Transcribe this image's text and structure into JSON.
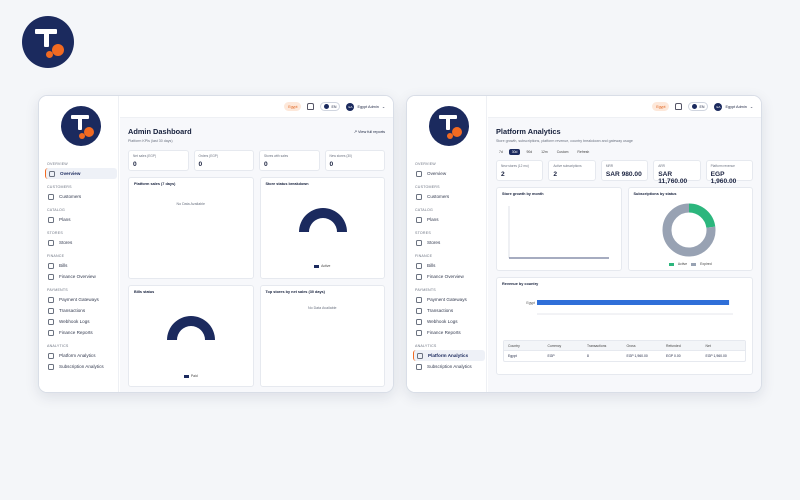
{
  "colors": {
    "brand": "#1b2a5e",
    "accent": "#f26a21"
  },
  "topbar": {
    "region": "Egypt",
    "lang": "EN",
    "user": "Egypt Admin",
    "initials": "EA"
  },
  "sidebar": {
    "sections": [
      {
        "title": "Overview",
        "items": [
          {
            "label": "Overview",
            "icon": "clock-icon"
          }
        ]
      },
      {
        "title": "Customers",
        "items": [
          {
            "label": "Customers",
            "icon": "users-icon"
          }
        ]
      },
      {
        "title": "Catalog",
        "items": [
          {
            "label": "Plans",
            "icon": "box-icon"
          }
        ]
      },
      {
        "title": "Stores",
        "items": [
          {
            "label": "Stores",
            "icon": "store-icon"
          }
        ]
      },
      {
        "title": "Finance",
        "items": [
          {
            "label": "Bills",
            "icon": "bill-icon"
          },
          {
            "label": "Finance Overview",
            "icon": "chart-icon"
          }
        ]
      },
      {
        "title": "Payments",
        "items": [
          {
            "label": "Payment Gateways",
            "icon": "card-icon"
          },
          {
            "label": "Transactions",
            "icon": "swap-icon"
          },
          {
            "label": "Webhook Logs",
            "icon": "hook-icon"
          },
          {
            "label": "Finance Reports",
            "icon": "report-icon"
          }
        ]
      },
      {
        "title": "Analytics",
        "items": [
          {
            "label": "Platform Analytics",
            "icon": "trend-icon"
          },
          {
            "label": "Subscription Analytics",
            "icon": "pie-icon"
          }
        ]
      }
    ]
  },
  "dashboard": {
    "title": "Admin Dashboard",
    "view_all": "View full reports",
    "kpi_title": "Platform KPIs (last 30 days)",
    "kpis": [
      {
        "label": "Net sales (EGP)",
        "value": "0"
      },
      {
        "label": "Orders (EGP)",
        "value": "0"
      },
      {
        "label": "Stores with sales",
        "value": "0"
      },
      {
        "label": "New stores (30)",
        "value": "0"
      }
    ],
    "cards": {
      "sales": {
        "title": "Platform sales (7 days)",
        "empty": "No Data Available"
      },
      "breakdown": {
        "title": "Store status breakdown",
        "legend": "Active"
      },
      "bills": {
        "title": "Bills status",
        "legend": "Paid"
      },
      "top": {
        "title": "Top stores by net sales (30 days)",
        "empty": "No Data Available"
      }
    }
  },
  "analytics": {
    "title": "Platform Analytics",
    "subtitle": "Store growth, subscriptions, platform revenue, country breakdown and gateway usage",
    "tabs": [
      "7d",
      "30d",
      "90d",
      "12m",
      "Custom",
      "Refresh"
    ],
    "kpis": [
      {
        "label": "New stores (12 mo)",
        "value": "2",
        "sub": ""
      },
      {
        "label": "Active subscriptions",
        "value": "2",
        "sub": ""
      },
      {
        "label": "MRR",
        "value": "SAR 980.00",
        "sub": ""
      },
      {
        "label": "ARR",
        "value": "SAR 11,760.00",
        "sub": ""
      },
      {
        "label": "Platform revenue",
        "value": "EGP 1,960.00",
        "sub": "Net (paid)"
      }
    ],
    "growth_title": "Store growth by month",
    "subs_title": "Subscriptions by status",
    "subs_legend": [
      "Active",
      "Expired"
    ],
    "revenue_title": "Revenue by country",
    "table": {
      "headers": [
        "Country",
        "Currency",
        "Transactions",
        "Gross",
        "Refunded",
        "Net"
      ],
      "rows": [
        [
          "Egypt",
          "EGP",
          "8",
          "EGP 1,960.00",
          "EGP 0.00",
          "EGP 1,960.00"
        ]
      ]
    }
  },
  "chart_data": [
    {
      "type": "pie",
      "title": "Store status breakdown",
      "labels": [
        "Active"
      ],
      "values": [
        1
      ]
    },
    {
      "type": "pie",
      "title": "Bills status",
      "labels": [
        "Paid"
      ],
      "values": [
        1
      ]
    },
    {
      "type": "pie",
      "title": "Subscriptions by status",
      "labels": [
        "Active",
        "Expired"
      ],
      "values": [
        0.23,
        0.77
      ],
      "colors": [
        "#2cb67d",
        "#98a2b3"
      ]
    },
    {
      "type": "bar",
      "title": "Revenue by country",
      "orientation": "horizontal",
      "categories": [
        "Egypt"
      ],
      "values": [
        1960
      ],
      "xlim": [
        0,
        2000
      ],
      "color": "#2f6fd8"
    }
  ]
}
